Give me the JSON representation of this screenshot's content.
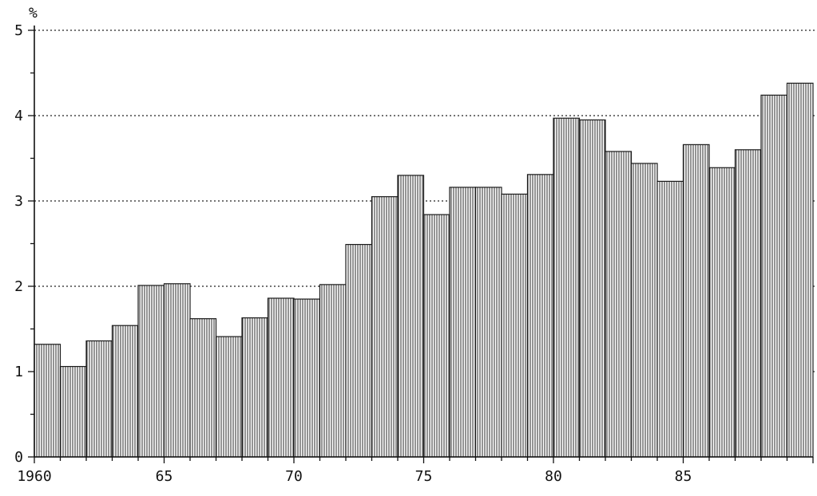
{
  "chart_data": {
    "type": "bar",
    "ylabel": "%",
    "ylim": [
      0,
      5
    ],
    "yticks": [
      "0",
      "1",
      "2",
      "3",
      "4",
      "5"
    ],
    "xlim": [
      1960,
      1990
    ],
    "xticks": [
      {
        "value": 1960,
        "label": "1960"
      },
      {
        "value": 1965,
        "label": "65"
      },
      {
        "value": 1970,
        "label": "70"
      },
      {
        "value": 1975,
        "label": "75"
      },
      {
        "value": 1980,
        "label": "80"
      },
      {
        "value": 1985,
        "label": "85"
      }
    ],
    "grid": "horizontal-dotted",
    "categories": [
      1960,
      1961,
      1962,
      1963,
      1964,
      1965,
      1966,
      1967,
      1968,
      1969,
      1970,
      1971,
      1972,
      1973,
      1974,
      1975,
      1976,
      1977,
      1978,
      1979,
      1980,
      1981,
      1982,
      1983,
      1984,
      1985,
      1986,
      1987,
      1988,
      1989
    ],
    "values": [
      1.32,
      1.06,
      1.36,
      1.54,
      2.01,
      2.03,
      1.62,
      1.41,
      1.63,
      1.86,
      1.85,
      2.02,
      2.49,
      3.05,
      3.3,
      2.84,
      3.16,
      3.16,
      3.08,
      3.31,
      3.97,
      3.95,
      3.58,
      3.44,
      3.23,
      3.66,
      3.39,
      3.6,
      4.24,
      4.38
    ]
  },
  "colors": {
    "ink": "#111111",
    "background": "#ffffff"
  }
}
